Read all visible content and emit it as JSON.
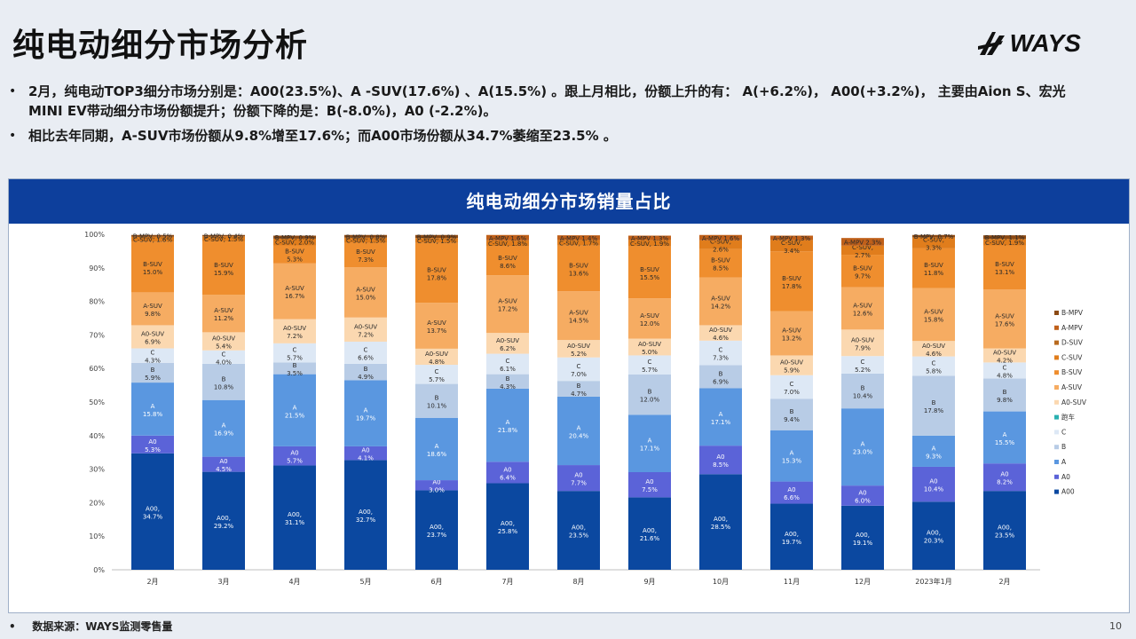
{
  "page": {
    "title": "纯电动细分市场分析",
    "logo_text": "WAYS",
    "bullets": [
      "2月，纯电动TOP3细分市场分别是：A00(23.5%)、A -SUV(17.6%) 、A(15.5%) 。跟上月相比，份额上升的有： A(+6.2%)， A00(+3.2%)， 主要由Aion S、宏光MINI EV带动细分市场份额提升；份额下降的是：B(-8.0%)，A0 (-2.2%)。",
      "相比去年同期，A-SUV市场份额从9.8%增至17.6%；而A00市场份额从34.7%萎缩至23.5% 。"
    ],
    "footer": "数据来源：WAYS监测零售量",
    "page_number": "10"
  },
  "chart_data": {
    "type": "bar",
    "stacked": true,
    "title": "纯电动细分市场销量占比",
    "categories": [
      "2月",
      "3月",
      "4月",
      "5月",
      "6月",
      "7月",
      "8月",
      "9月",
      "10月",
      "11月",
      "12月",
      "2023年1月",
      "2月"
    ],
    "ylim": [
      0,
      100
    ],
    "y_ticks": [
      "0%",
      "10%",
      "20%",
      "30%",
      "40%",
      "50%",
      "60%",
      "70%",
      "80%",
      "90%",
      "100%"
    ],
    "grid": false,
    "legend_position": "right",
    "series": [
      {
        "name": "A00",
        "color": "#0b48a0",
        "label": "A00,",
        "values": [
          34.7,
          29.2,
          31.1,
          32.7,
          23.7,
          25.8,
          23.5,
          21.6,
          28.5,
          19.7,
          19.1,
          20.3,
          23.5
        ]
      },
      {
        "name": "A0",
        "color": "#5b63d8",
        "label": "A0",
        "values": [
          5.3,
          4.5,
          5.7,
          4.1,
          3.0,
          6.4,
          7.7,
          7.5,
          8.5,
          6.6,
          6.0,
          10.4,
          8.2
        ]
      },
      {
        "name": "A",
        "color": "#5a97e0",
        "label": "A",
        "values": [
          15.8,
          16.9,
          21.5,
          19.7,
          18.6,
          21.8,
          20.4,
          17.1,
          17.1,
          15.3,
          23.0,
          9.3,
          15.5
        ]
      },
      {
        "name": "B",
        "color": "#b8cce6",
        "label": "B",
        "values": [
          5.9,
          10.8,
          3.5,
          4.9,
          10.1,
          4.3,
          4.7,
          12.0,
          6.9,
          9.4,
          10.4,
          17.8,
          9.8
        ]
      },
      {
        "name": "C",
        "color": "#dde8f5",
        "label": "C",
        "values": [
          4.3,
          4.0,
          5.7,
          6.6,
          5.7,
          6.1,
          7.0,
          5.7,
          7.3,
          7.0,
          5.2,
          5.8,
          4.8
        ]
      },
      {
        "name": "跑车",
        "color": "#2ab0b0",
        "label": "跑车",
        "values": [
          0,
          0,
          0,
          0,
          0,
          0,
          0,
          0,
          0,
          0,
          0,
          0,
          0
        ]
      },
      {
        "name": "A0-SUV",
        "color": "#fbd8b0",
        "label": "A0-SUV",
        "values": [
          6.9,
          5.4,
          7.2,
          7.2,
          4.8,
          6.2,
          5.2,
          5.0,
          4.6,
          5.9,
          7.9,
          4.6,
          4.2
        ]
      },
      {
        "name": "A-SUV",
        "color": "#f6ac62",
        "label": "A-SUV",
        "values": [
          9.8,
          11.2,
          16.7,
          15.0,
          13.7,
          17.2,
          14.5,
          12.0,
          14.2,
          13.2,
          12.6,
          15.8,
          17.6
        ]
      },
      {
        "name": "B-SUV",
        "color": "#ef8e2e",
        "label": "B-SUV",
        "values": [
          15.0,
          15.9,
          5.3,
          7.3,
          17.8,
          8.6,
          13.6,
          15.5,
          8.5,
          17.8,
          9.7,
          11.8,
          13.1
        ]
      },
      {
        "name": "C-SUV",
        "color": "#e07d1c",
        "label": "C-SUV,",
        "values": [
          1.6,
          1.5,
          2.0,
          1.5,
          1.5,
          1.8,
          1.7,
          1.9,
          2.6,
          3.4,
          2.7,
          3.3,
          1.9
        ]
      },
      {
        "name": "D-SUV",
        "color": "#b86a1e",
        "label": "D-SUV",
        "values": [
          0,
          0,
          0,
          0,
          0,
          0,
          0,
          0,
          0,
          0,
          0,
          0,
          0
        ]
      },
      {
        "name": "A-MPV",
        "color": "#c0601a",
        "label": "A-MPV",
        "values": [
          0,
          0,
          0,
          0,
          0,
          1.6,
          1.4,
          1.3,
          1.6,
          1.3,
          2.3,
          0,
          0
        ]
      },
      {
        "name": "B-MPV",
        "color": "#8c4a14",
        "label": "B-MPV,",
        "values": [
          0.5,
          0.4,
          0.9,
          0.8,
          0.9,
          0,
          0,
          0,
          0,
          0,
          0,
          0.7,
          1.1
        ]
      }
    ]
  }
}
